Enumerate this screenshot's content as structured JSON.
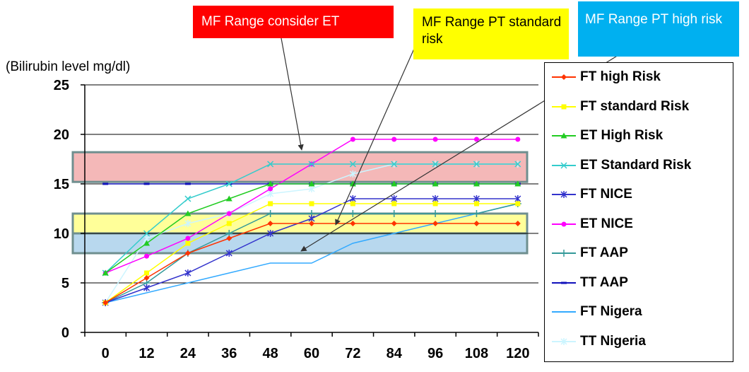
{
  "callouts": {
    "red": "MF Range consider ET",
    "yellow": "MF Range PT standard risk",
    "blue": "MF Range PT high risk"
  },
  "chart_data": {
    "type": "line",
    "ylabel": "(Bilirubin level mg/dl)",
    "xlabel": "",
    "categories": [
      "0",
      "12",
      "24",
      "36",
      "48",
      "60",
      "72",
      "84",
      "96",
      "108",
      "120"
    ],
    "ylim": [
      0,
      25
    ],
    "yticks": [
      0,
      5,
      10,
      15,
      20,
      25
    ],
    "grid": "horizontal",
    "legend_position": "right",
    "bands": [
      {
        "label": "MF Range consider ET",
        "y0": 15.2,
        "y1": 18.2,
        "color": "#f4b8b8"
      },
      {
        "label": "MF Range PT standard risk",
        "y0": 10,
        "y1": 12,
        "color": "#ffff99"
      },
      {
        "label": "MF Range PT high risk",
        "y0": 8,
        "y1": 10,
        "color": "#b8d8ee"
      }
    ],
    "series": [
      {
        "name": "FT high Risk",
        "color": "#ff3300",
        "marker": "diamond",
        "values": [
          3,
          5.5,
          8,
          9.5,
          11,
          11,
          11,
          11,
          11,
          11,
          11
        ]
      },
      {
        "name": "FT standard Risk",
        "color": "#ffff00",
        "marker": "square",
        "values": [
          3,
          6,
          9,
          11,
          13,
          13,
          13,
          13,
          13,
          13,
          13
        ]
      },
      {
        "name": "ET High Risk",
        "color": "#22cc22",
        "marker": "triangle",
        "values": [
          6,
          9,
          12,
          13.5,
          15,
          15,
          15,
          15,
          15,
          15,
          15
        ]
      },
      {
        "name": "ET Standard Risk",
        "color": "#33cccc",
        "marker": "x",
        "values": [
          6,
          10,
          13.5,
          15,
          17,
          17,
          17,
          17,
          17,
          17,
          17
        ]
      },
      {
        "name": "FT NICE",
        "color": "#3333cc",
        "marker": "star",
        "values": [
          3,
          4.5,
          6,
          8,
          10,
          11.5,
          13.5,
          13.5,
          13.5,
          13.5,
          13.5
        ]
      },
      {
        "name": "ET NICE",
        "color": "#ff00ff",
        "marker": "circle",
        "values": [
          6,
          7.7,
          9.5,
          12,
          14.5,
          17,
          19.5,
          19.5,
          19.5,
          19.5,
          19.5
        ]
      },
      {
        "name": "FT AAP",
        "color": "#339999",
        "marker": "plus",
        "values": [
          3,
          5,
          8,
          10,
          12,
          12,
          12,
          12,
          12,
          12,
          13
        ]
      },
      {
        "name": "TT AAP",
        "color": "#1111bb",
        "marker": "dash",
        "values": [
          15,
          15,
          15,
          15,
          15,
          15,
          15,
          15,
          15,
          15,
          15
        ]
      },
      {
        "name": "FT Nigera",
        "color": "#33aaff",
        "marker": "none",
        "values": [
          3,
          4,
          5,
          6,
          7,
          7,
          9,
          10,
          11,
          12,
          13
        ]
      },
      {
        "name": "TT Nigeria",
        "color": "#ccf5ff",
        "marker": "star",
        "values": [
          3,
          9.5,
          11,
          12,
          14,
          14.5,
          16,
          17,
          17,
          17,
          17
        ]
      }
    ]
  }
}
